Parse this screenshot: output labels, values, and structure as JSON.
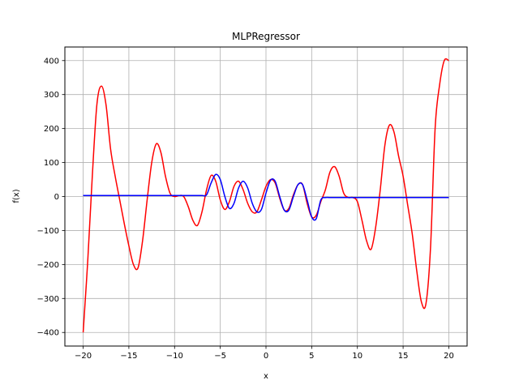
{
  "chart_data": {
    "type": "line",
    "title": "MLPRegressor",
    "xlabel": "x",
    "ylabel": "f(x)",
    "xlim": [
      -22,
      22
    ],
    "ylim": [
      -440,
      440
    ],
    "xticks": [
      -20,
      -15,
      -10,
      -5,
      0,
      5,
      10,
      15,
      20
    ],
    "yticks": [
      -400,
      -300,
      -200,
      -100,
      0,
      100,
      200,
      300,
      400
    ],
    "grid": true,
    "series": [
      {
        "color": "#ff0000",
        "x": [
          -20,
          -19.5,
          -19,
          -18.5,
          -18,
          -17.5,
          -17,
          -16.5,
          -16,
          -15.5,
          -15,
          -14.5,
          -14,
          -13.5,
          -13,
          -12.5,
          -12,
          -11.5,
          -11,
          -10.5,
          -10,
          -9.5,
          -9,
          -8.5,
          -8,
          -7.5,
          -7,
          -6.5,
          -6,
          -5.5,
          -5,
          -4.5,
          -4,
          -3.5,
          -3,
          -2.5,
          -2,
          -1.5,
          -1,
          -0.5,
          0,
          0.5,
          1,
          1.5,
          2,
          2.5,
          3,
          3.5,
          4,
          4.5,
          5,
          5.5,
          6,
          6.5,
          7,
          7.5,
          8,
          8.5,
          9,
          9.5,
          10,
          10.5,
          11,
          11.5,
          12,
          12.5,
          13,
          13.5,
          14,
          14.5,
          15,
          15.5,
          16,
          16.5,
          17,
          17.5,
          18,
          18.5,
          19,
          19.5,
          20
        ],
        "y": [
          -400,
          -190,
          60,
          270,
          325,
          270,
          140,
          60,
          -10,
          -80,
          -145,
          -200,
          -210,
          -130,
          -10,
          100,
          155,
          130,
          60,
          10,
          0,
          3,
          0,
          -30,
          -70,
          -85,
          -45,
          20,
          62,
          45,
          -10,
          -38,
          -15,
          30,
          45,
          20,
          -20,
          -45,
          -45,
          -10,
          30,
          50,
          40,
          -5,
          -40,
          -35,
          5,
          35,
          35,
          -20,
          -60,
          -55,
          -15,
          20,
          72,
          88,
          60,
          10,
          -3,
          -3,
          -15,
          -70,
          -130,
          -155,
          -90,
          20,
          150,
          210,
          190,
          120,
          60,
          -25,
          -110,
          -220,
          -310,
          -315,
          -150,
          200,
          330,
          400,
          400
        ]
      },
      {
        "color": "#0000ff",
        "x": [
          -20,
          -19,
          -18,
          -17,
          -16,
          -15,
          -14,
          -13,
          -12,
          -11,
          -10,
          -9,
          -8,
          -7,
          -6.5,
          -6,
          -5.5,
          -5,
          -4.5,
          -4,
          -3.5,
          -3,
          -2.5,
          -2,
          -1.5,
          -1,
          -0.5,
          0,
          0.5,
          1,
          1.5,
          2,
          2.5,
          3,
          3.5,
          4,
          4.5,
          5,
          5.5,
          6,
          6.5,
          7,
          8,
          9,
          10,
          11,
          12,
          13,
          14,
          15,
          16,
          17,
          18,
          19,
          20
        ],
        "y": [
          3,
          3,
          3,
          3,
          3,
          3,
          3,
          3,
          3,
          3,
          3,
          3,
          3,
          3,
          5,
          40,
          65,
          50,
          0,
          -35,
          -20,
          25,
          45,
          25,
          -20,
          -45,
          -38,
          10,
          48,
          45,
          0,
          -40,
          -40,
          0,
          35,
          35,
          -10,
          -60,
          -65,
          -10,
          -3,
          -3,
          -3,
          -3,
          -3,
          -3,
          -3,
          -3,
          -3,
          -3,
          -3,
          -3,
          -3,
          -3,
          -3
        ]
      }
    ]
  }
}
